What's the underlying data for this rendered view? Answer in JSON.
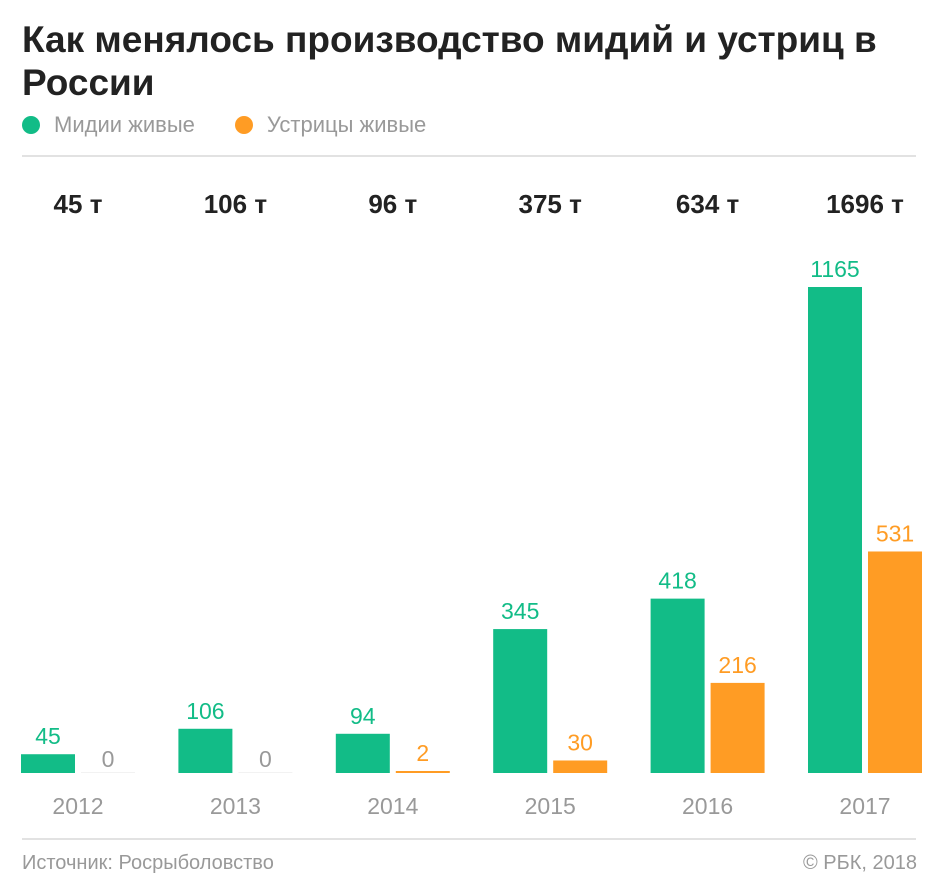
{
  "chart_data": {
    "type": "bar",
    "title": "Как менялось производство мидий и устриц в России",
    "categories": [
      "2012",
      "2013",
      "2014",
      "2015",
      "2016",
      "2017"
    ],
    "totals": [
      "45 т",
      "106 т",
      "96 т",
      "375 т",
      "634 т",
      "1696 т"
    ],
    "series": [
      {
        "name": "Мидии живые",
        "color": "#12bc87",
        "values": [
          45,
          106,
          94,
          345,
          418,
          1165
        ]
      },
      {
        "name": "Устрицы живые",
        "color": "#ff9c24",
        "values": [
          0,
          0,
          2,
          30,
          216,
          531
        ]
      }
    ],
    "zero_label_color": "#999999",
    "ylim": [
      0,
      1165
    ],
    "grid": false,
    "legend": "top-left"
  },
  "footer": {
    "source": "Источник: Росрыболовство",
    "copyright": "© РБК, 2018"
  }
}
